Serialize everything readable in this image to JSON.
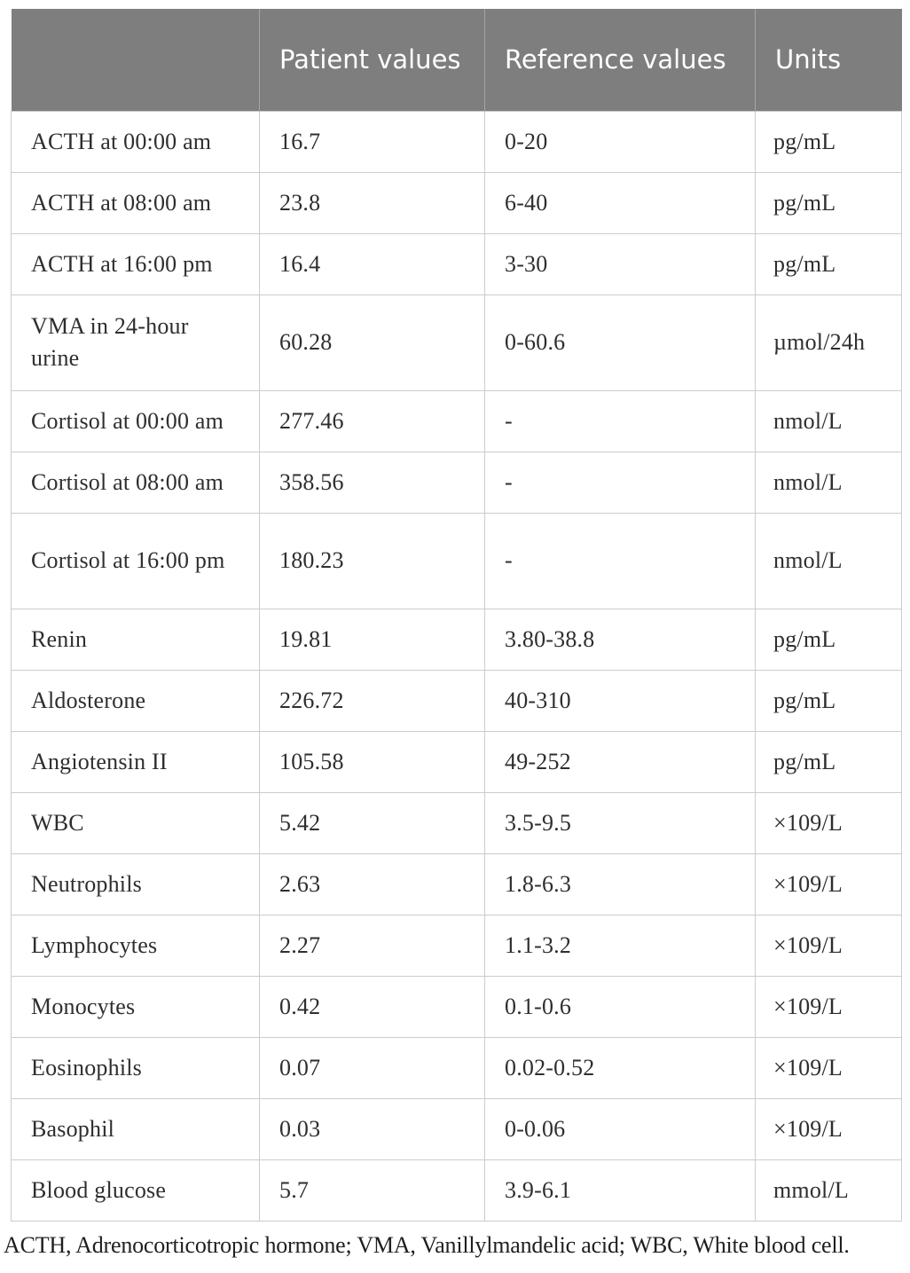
{
  "table": {
    "columns": [
      "",
      "Patient values",
      "Reference values",
      "Units"
    ],
    "rows": [
      {
        "label": "ACTH at 00:00 am",
        "patient": "16.7",
        "reference": "0-20",
        "units": "pg/mL"
      },
      {
        "label": "ACTH at 08:00 am",
        "patient": "23.8",
        "reference": "6-40",
        "units": "pg/mL"
      },
      {
        "label": "ACTH at 16:00 pm",
        "patient": "16.4",
        "reference": "3-30",
        "units": "pg/mL"
      },
      {
        "label": "VMA in 24-hour urine",
        "patient": "60.28",
        "reference": "0-60.6",
        "units": "µmol/24h"
      },
      {
        "label": "Cortisol at 00:00 am",
        "patient": "277.46",
        "reference": "-",
        "units": "nmol/L"
      },
      {
        "label": "Cortisol at 08:00 am",
        "patient": "358.56",
        "reference": "-",
        "units": "nmol/L"
      },
      {
        "label": "Cortisol at 16:00 pm",
        "patient": "180.23",
        "reference": "-",
        "units": "nmol/L"
      },
      {
        "label": "Renin",
        "patient": "19.81",
        "reference": "3.80-38.8",
        "units": "pg/mL"
      },
      {
        "label": "Aldosterone",
        "patient": "226.72",
        "reference": "40-310",
        "units": "pg/mL"
      },
      {
        "label": "Angiotensin II",
        "patient": "105.58",
        "reference": "49-252",
        "units": "pg/mL"
      },
      {
        "label": "WBC",
        "patient": "5.42",
        "reference": "3.5-9.5",
        "units": "×109/L"
      },
      {
        "label": "Neutrophils",
        "patient": "2.63",
        "reference": "1.8-6.3",
        "units": "×109/L"
      },
      {
        "label": "Lymphocytes",
        "patient": "2.27",
        "reference": "1.1-3.2",
        "units": "×109/L"
      },
      {
        "label": "Monocytes",
        "patient": "0.42",
        "reference": "0.1-0.6",
        "units": "×109/L"
      },
      {
        "label": "Eosinophils",
        "patient": "0.07",
        "reference": "0.02-0.52",
        "units": "×109/L"
      },
      {
        "label": "Basophil",
        "patient": "0.03",
        "reference": "0-0.06",
        "units": "×109/L"
      },
      {
        "label": "Blood glucose",
        "patient": "5.7",
        "reference": "3.9-6.1",
        "units": "mmol/L"
      }
    ],
    "footnote": "ACTH, Adrenocorticotropic hormone; VMA, Vanillylmandelic acid; WBC, White blood cell."
  },
  "colors": {
    "header_background": "#7e7e7e",
    "header_text": "#ffffff",
    "body_text": "#2e2e2e",
    "grid_border": "#cccccc"
  }
}
